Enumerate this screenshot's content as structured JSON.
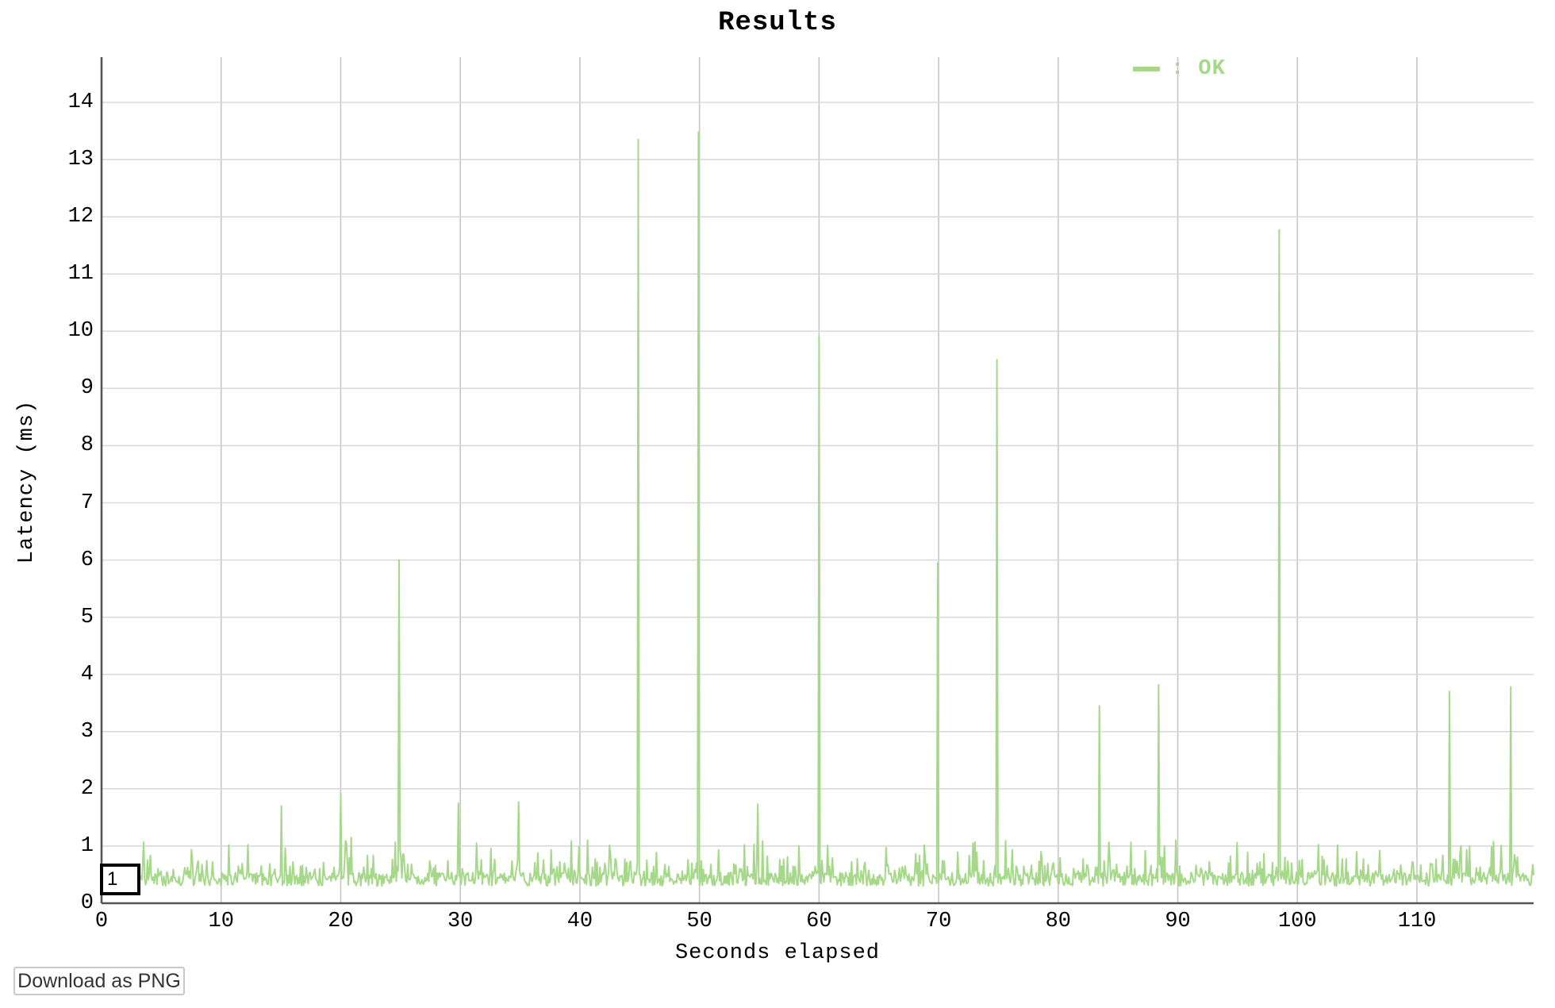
{
  "page": {
    "title": "Results"
  },
  "legend": {
    "series_label": ": OK",
    "line_icon": "green-dash",
    "color": "#a6d88a",
    "position": "top-right"
  },
  "annotation": {
    "label": "1"
  },
  "download_button": {
    "label": "Download as PNG"
  },
  "colors": {
    "series_ok": "#a6d88a",
    "axis": "#555555",
    "grid_horizontal": "#dadada",
    "grid_vertical": "#c6c6c6",
    "annotation_border": "#000000",
    "text": "#000000",
    "button_text": "#333333",
    "button_border": "#c9c9c9"
  },
  "chart_data": {
    "type": "line",
    "title": "Results",
    "xlabel": "Seconds elapsed",
    "ylabel": "Latency (ms)",
    "series": [
      {
        "name": "OK",
        "color": "#a6d88a"
      }
    ],
    "x_ticks": [
      0,
      10,
      20,
      30,
      40,
      50,
      60,
      70,
      80,
      90,
      100,
      110
    ],
    "y_ticks": [
      0,
      1,
      2,
      3,
      4,
      5,
      6,
      7,
      8,
      9,
      10,
      11,
      12,
      13,
      14
    ],
    "xlim": [
      0,
      119.8
    ],
    "ylim": [
      0,
      14.8
    ],
    "grid": true,
    "legend_position": "top-right",
    "baseline_noise": {
      "description": "dense request latency noise band",
      "typical_ms": 0.45,
      "band_min_ms": 0.3,
      "band_max_ms": 0.78,
      "minor_spike_max_ms": 1.1,
      "sample_interval_s": 0.08
    },
    "spikes": [
      {
        "t": 15.0,
        "ms": 1.7
      },
      {
        "t": 20.0,
        "ms": 1.9
      },
      {
        "t": 20.9,
        "ms": 1.15
      },
      {
        "t": 24.9,
        "ms": 6.0
      },
      {
        "t": 29.8,
        "ms": 1.75
      },
      {
        "t": 34.9,
        "ms": 1.77
      },
      {
        "t": 40.6,
        "ms": 1.1
      },
      {
        "t": 44.9,
        "ms": 13.35
      },
      {
        "t": 49.9,
        "ms": 13.48
      },
      {
        "t": 54.9,
        "ms": 1.73
      },
      {
        "t": 60.0,
        "ms": 9.9
      },
      {
        "t": 69.9,
        "ms": 5.95
      },
      {
        "t": 72.9,
        "ms": 1.05
      },
      {
        "t": 74.9,
        "ms": 9.5
      },
      {
        "t": 83.4,
        "ms": 3.45
      },
      {
        "t": 88.4,
        "ms": 3.82
      },
      {
        "t": 89.8,
        "ms": 1.1
      },
      {
        "t": 98.5,
        "ms": 11.77
      },
      {
        "t": 112.7,
        "ms": 3.7
      },
      {
        "t": 116.4,
        "ms": 1.08
      },
      {
        "t": 117.8,
        "ms": 3.78
      }
    ]
  }
}
